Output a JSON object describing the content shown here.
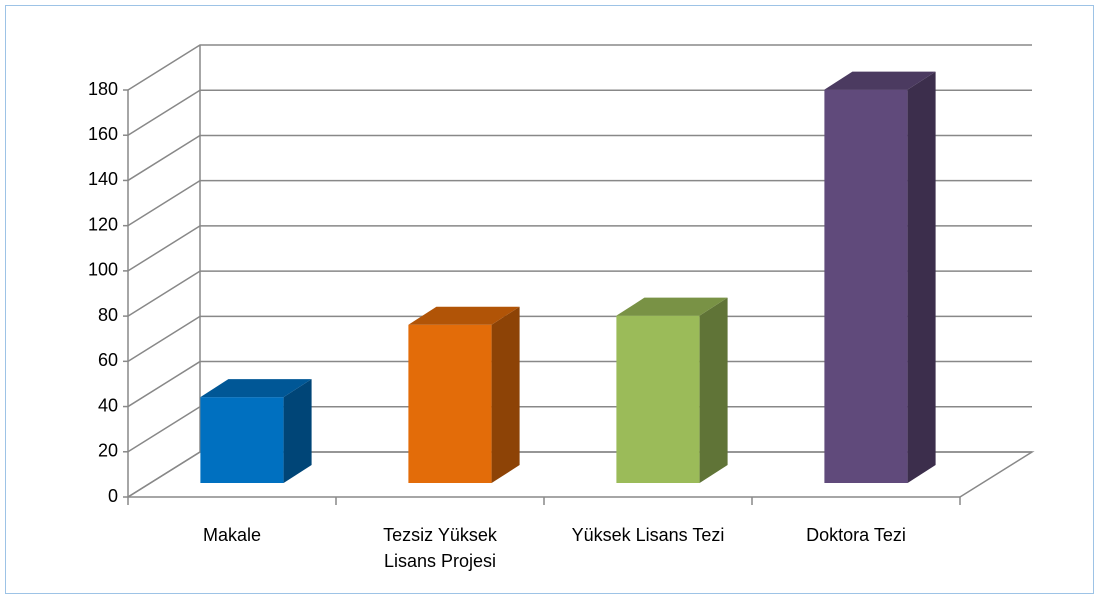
{
  "chart_data": {
    "type": "bar3d",
    "categories": [
      "Makale",
      "Tezsiz Yüksek Lisans Projesi",
      "Yüksek Lisans Tezi",
      "Doktora Tezi"
    ],
    "values": [
      38,
      70,
      74,
      174
    ],
    "colors": [
      "#0070c0",
      "#e36c09",
      "#9bbb59",
      "#604a7b"
    ],
    "ylim": [
      0,
      180
    ],
    "yticks": [
      0,
      20,
      40,
      60,
      80,
      100,
      120,
      140,
      160,
      180
    ],
    "grid": true
  }
}
